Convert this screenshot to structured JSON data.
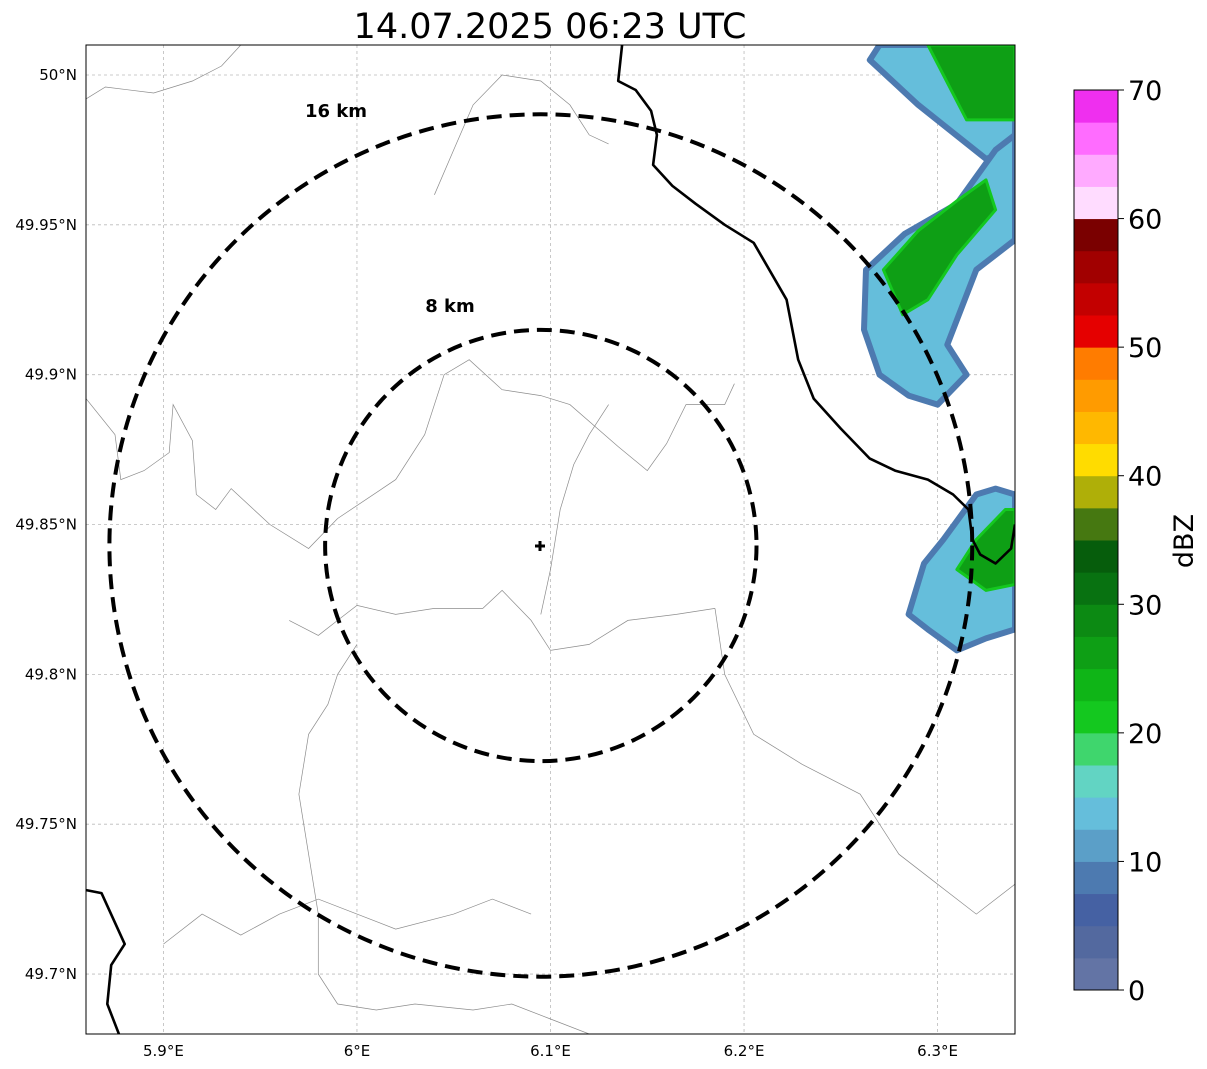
{
  "title": "14.07.2025 06:23 UTC",
  "map": {
    "lon_range": [
      5.86,
      6.34
    ],
    "lat_range": [
      49.68,
      50.01
    ],
    "grid": true,
    "x_ticks": [
      {
        "value": 5.9,
        "label": "5.9°E"
      },
      {
        "value": 6.0,
        "label": "6°E"
      },
      {
        "value": 6.1,
        "label": "6.1°E"
      },
      {
        "value": 6.2,
        "label": "6.2°E"
      },
      {
        "value": 6.3,
        "label": "6.3°E"
      }
    ],
    "y_ticks": [
      {
        "value": 50.0,
        "label": "50°N"
      },
      {
        "value": 49.95,
        "label": "49.95°N"
      },
      {
        "value": 49.9,
        "label": "49.9°N"
      },
      {
        "value": 49.85,
        "label": "49.85°N"
      },
      {
        "value": 49.8,
        "label": "49.8°N"
      },
      {
        "value": 49.75,
        "label": "49.75°N"
      },
      {
        "value": 49.7,
        "label": "49.7°N"
      }
    ],
    "center": {
      "lon": 6.095,
      "lat": 49.843
    },
    "rings": [
      {
        "radius_km": 8,
        "label": "8 km"
      },
      {
        "radius_km": 16,
        "label": "16 km"
      }
    ],
    "radar_cells": [
      {
        "name": "north-east-band",
        "shape": [
          [
            6.27,
            50.01
          ],
          [
            6.34,
            50.01
          ],
          [
            6.34,
            49.975
          ],
          [
            6.325,
            49.972
          ],
          [
            6.29,
            49.99
          ],
          [
            6.265,
            50.005
          ]
        ]
      },
      {
        "name": "north-east-core",
        "shape": [
          [
            6.295,
            50.01
          ],
          [
            6.34,
            50.01
          ],
          [
            6.34,
            49.985
          ],
          [
            6.315,
            49.985
          ]
        ]
      },
      {
        "name": "east-mid-band",
        "shape": [
          [
            6.263,
            49.935
          ],
          [
            6.283,
            49.947
          ],
          [
            6.31,
            49.957
          ],
          [
            6.33,
            49.975
          ],
          [
            6.34,
            49.98
          ],
          [
            6.34,
            49.945
          ],
          [
            6.32,
            49.935
          ],
          [
            6.305,
            49.91
          ],
          [
            6.315,
            49.9
          ],
          [
            6.3,
            49.89
          ],
          [
            6.285,
            49.893
          ],
          [
            6.27,
            49.9
          ],
          [
            6.262,
            49.915
          ]
        ]
      },
      {
        "name": "east-mid-core",
        "shape": [
          [
            6.272,
            49.935
          ],
          [
            6.29,
            49.948
          ],
          [
            6.31,
            49.958
          ],
          [
            6.325,
            49.965
          ],
          [
            6.33,
            49.955
          ],
          [
            6.31,
            49.94
          ],
          [
            6.295,
            49.925
          ],
          [
            6.282,
            49.92
          ]
        ]
      },
      {
        "name": "east-south-band",
        "shape": [
          [
            6.285,
            49.82
          ],
          [
            6.293,
            49.837
          ],
          [
            6.303,
            49.845
          ],
          [
            6.32,
            49.86
          ],
          [
            6.33,
            49.862
          ],
          [
            6.34,
            49.86
          ],
          [
            6.34,
            49.815
          ],
          [
            6.325,
            49.812
          ],
          [
            6.31,
            49.808
          ],
          [
            6.295,
            49.815
          ]
        ]
      },
      {
        "name": "east-south-core",
        "shape": [
          [
            6.31,
            49.835
          ],
          [
            6.32,
            49.845
          ],
          [
            6.335,
            49.855
          ],
          [
            6.34,
            49.855
          ],
          [
            6.34,
            49.83
          ],
          [
            6.325,
            49.828
          ]
        ]
      }
    ],
    "borders": [
      {
        "name": "luxembourg-germany-border",
        "points": [
          [
            6.137,
            50.01
          ],
          [
            6.135,
            49.998
          ],
          [
            6.144,
            49.995
          ],
          [
            6.152,
            49.988
          ],
          [
            6.155,
            49.98
          ],
          [
            6.153,
            49.97
          ],
          [
            6.163,
            49.963
          ],
          [
            6.175,
            49.957
          ],
          [
            6.19,
            49.95
          ],
          [
            6.205,
            49.944
          ],
          [
            6.222,
            49.925
          ],
          [
            6.228,
            49.905
          ],
          [
            6.236,
            49.892
          ],
          [
            6.25,
            49.882
          ],
          [
            6.265,
            49.872
          ],
          [
            6.278,
            49.868
          ],
          [
            6.295,
            49.865
          ],
          [
            6.308,
            49.86
          ],
          [
            6.316,
            49.855
          ],
          [
            6.318,
            49.845
          ],
          [
            6.322,
            49.84
          ],
          [
            6.33,
            49.837
          ],
          [
            6.338,
            49.842
          ],
          [
            6.34,
            49.85
          ]
        ]
      },
      {
        "name": "luxembourg-france-border",
        "points": [
          [
            5.86,
            49.728
          ],
          [
            5.868,
            49.727
          ],
          [
            5.88,
            49.71
          ],
          [
            5.873,
            49.703
          ],
          [
            5.871,
            49.69
          ],
          [
            5.877,
            49.68
          ]
        ]
      }
    ],
    "admin_lines": [
      [
        [
          5.86,
          49.992
        ],
        [
          5.87,
          49.996
        ],
        [
          5.895,
          49.994
        ],
        [
          5.915,
          49.998
        ],
        [
          5.93,
          50.003
        ],
        [
          5.94,
          50.01
        ]
      ],
      [
        [
          5.86,
          49.892
        ],
        [
          5.875,
          49.88
        ],
        [
          5.878,
          49.865
        ],
        [
          5.89,
          49.868
        ],
        [
          5.903,
          49.874
        ],
        [
          5.905,
          49.89
        ],
        [
          5.915,
          49.878
        ],
        [
          5.917,
          49.86
        ],
        [
          5.927,
          49.855
        ],
        [
          5.935,
          49.862
        ],
        [
          5.955,
          49.85
        ],
        [
          5.975,
          49.842
        ],
        [
          5.99,
          49.852
        ]
      ],
      [
        [
          5.99,
          49.852
        ],
        [
          6.02,
          49.865
        ],
        [
          6.035,
          49.88
        ],
        [
          6.045,
          49.9
        ],
        [
          6.058,
          49.905
        ],
        [
          6.075,
          49.895
        ],
        [
          6.095,
          49.893
        ],
        [
          6.11,
          49.89
        ],
        [
          6.135,
          49.876
        ],
        [
          6.15,
          49.868
        ],
        [
          6.16,
          49.877
        ],
        [
          6.17,
          49.89
        ],
        [
          6.19,
          49.89
        ],
        [
          6.195,
          49.897
        ]
      ],
      [
        [
          5.965,
          49.818
        ],
        [
          5.98,
          49.813
        ],
        [
          5.99,
          49.818
        ],
        [
          6.0,
          49.823
        ],
        [
          6.02,
          49.82
        ],
        [
          6.04,
          49.822
        ],
        [
          6.065,
          49.822
        ],
        [
          6.075,
          49.828
        ],
        [
          6.09,
          49.818
        ],
        [
          6.1,
          49.808
        ],
        [
          6.12,
          49.81
        ],
        [
          6.14,
          49.818
        ],
        [
          6.165,
          49.82
        ],
        [
          6.185,
          49.822
        ]
      ],
      [
        [
          6.185,
          49.822
        ],
        [
          6.19,
          49.8
        ],
        [
          6.205,
          49.78
        ],
        [
          6.23,
          49.77
        ],
        [
          6.26,
          49.76
        ],
        [
          6.28,
          49.74
        ],
        [
          6.3,
          49.73
        ],
        [
          6.32,
          49.72
        ],
        [
          6.34,
          49.73
        ]
      ],
      [
        [
          6.0,
          49.81
        ],
        [
          5.99,
          49.8
        ],
        [
          5.985,
          49.79
        ],
        [
          5.975,
          49.78
        ],
        [
          5.97,
          49.76
        ],
        [
          5.975,
          49.74
        ],
        [
          5.98,
          49.72
        ],
        [
          5.98,
          49.7
        ],
        [
          5.99,
          49.69
        ],
        [
          6.01,
          49.688
        ],
        [
          6.03,
          49.69
        ],
        [
          6.06,
          49.688
        ],
        [
          6.08,
          49.69
        ],
        [
          6.1,
          49.685
        ],
        [
          6.12,
          49.68
        ]
      ],
      [
        [
          6.095,
          49.82
        ],
        [
          6.1,
          49.835
        ],
        [
          6.105,
          49.855
        ],
        [
          6.112,
          49.87
        ],
        [
          6.12,
          49.88
        ],
        [
          6.13,
          49.89
        ]
      ],
      [
        [
          6.04,
          49.96
        ],
        [
          6.05,
          49.975
        ],
        [
          6.06,
          49.99
        ],
        [
          6.075,
          50.0
        ],
        [
          6.095,
          49.998
        ],
        [
          6.11,
          49.99
        ],
        [
          6.12,
          49.98
        ],
        [
          6.13,
          49.977
        ]
      ],
      [
        [
          5.9,
          49.71
        ],
        [
          5.92,
          49.72
        ],
        [
          5.94,
          49.713
        ],
        [
          5.96,
          49.72
        ],
        [
          5.98,
          49.725
        ],
        [
          6.0,
          49.72
        ],
        [
          6.02,
          49.715
        ],
        [
          6.05,
          49.72
        ],
        [
          6.07,
          49.725
        ],
        [
          6.09,
          49.72
        ]
      ]
    ]
  },
  "colorbar": {
    "label": "dBZ",
    "min": 0,
    "max": 70,
    "step": 2.5,
    "ticks": [
      "0",
      "10",
      "20",
      "30",
      "40",
      "50",
      "60",
      "70"
    ],
    "colors": [
      "#6374a5",
      "#53699f",
      "#4561a3",
      "#4d7ab0",
      "#5b9fc8",
      "#65bedb",
      "#62d4c3",
      "#3fd66d",
      "#14c81f",
      "#0fb517",
      "#0e9f15",
      "#0c8a13",
      "#087211",
      "#065d0c",
      "#467811",
      "#afaf08",
      "#ffdc00",
      "#ffb800",
      "#ff9b00",
      "#ff7c00",
      "#e50000",
      "#c30000",
      "#a10000",
      "#7a0000",
      "#ffdcff",
      "#ffaaff",
      "#ff6cff",
      "#ef2fef"
    ]
  }
}
